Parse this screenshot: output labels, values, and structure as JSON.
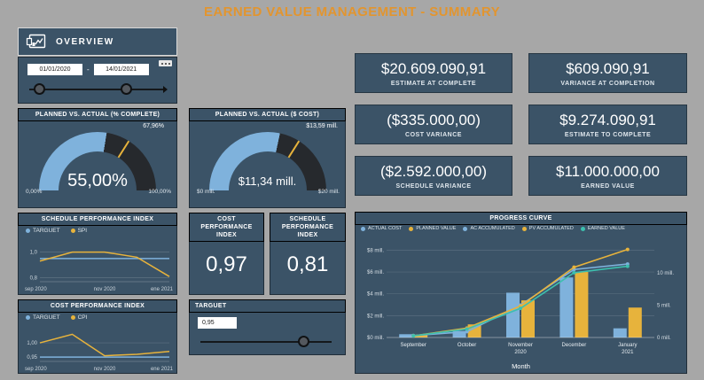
{
  "title": "EARNED VALUE MANAGEMENT - SUMMARY",
  "colors": {
    "background": "#a7a7a7",
    "panel": "#3b5367",
    "accent_blue": "#7fb2dc",
    "accent_yellow": "#e7b33c",
    "accent_teal": "#3dbfae",
    "title_orange": "#e2952f",
    "gauge_track": "#26292d"
  },
  "overview": {
    "label": "OVERVIEW"
  },
  "date_slicer": {
    "start_date": "01/01/2020",
    "end_date": "14/01/2021",
    "separator": "-"
  },
  "gauge_percent": {
    "title": "PLANNED VS. ACTUAL (% COMPLETE)",
    "value_label": "55,00%",
    "value_pct": 55.0,
    "marker_label": "67,96%",
    "marker_pct": 67.96,
    "min_label": "0,00%",
    "max_label": "100,00%",
    "fill": "#7fb2dc"
  },
  "gauge_cost": {
    "title": "PLANNED VS. ACTUAL ($ COST)",
    "value_label": "$11,34 mill.",
    "value_pct": 56.7,
    "marker_label": "$13,59 mill.",
    "marker_pct": 67.95,
    "min_label": "$0 mill.",
    "max_label": "$20 mill.",
    "fill": "#7fb2dc"
  },
  "kpi_cards": [
    {
      "value": "$20.609.090,91",
      "label": "ESTIMATE AT COMPLETE"
    },
    {
      "value": "$609.090,91",
      "label": "VARIANCE AT COMPLETION"
    },
    {
      "value": "($335.000,00)",
      "label": "COST VARIANCE"
    },
    {
      "value": "$9.274.090,91",
      "label": "ESTIMATE TO COMPLETE"
    },
    {
      "value": "($2.592.000,00)",
      "label": "SCHEDULE VARIANCE"
    },
    {
      "value": "$11.000.000,00",
      "label": "EARNED VALUE"
    }
  ],
  "kpi_cpi": {
    "title": "COST PERFORMANCE INDEX",
    "value": "0,97"
  },
  "kpi_spi": {
    "title": "SCHEDULE PERFORMANCE INDEX",
    "value": "0,81"
  },
  "targuet": {
    "title": "TARGUET",
    "value": "0,95"
  },
  "chart_data": [
    {
      "id": "spi-chart",
      "type": "line",
      "title": "SCHEDULE PERFORMANCE INDEX",
      "x": [
        "sep 2020",
        "oct 2020",
        "nov 2020",
        "dic 2020",
        "ene 2021"
      ],
      "x_tick_labels": [
        "sep 2020",
        "nov 2020",
        "ene 2021"
      ],
      "ylim": [
        0.77,
        1.08
      ],
      "y_ticks": [
        {
          "v": 1.0,
          "label": "1,0"
        },
        {
          "v": 0.8,
          "label": "0,8"
        }
      ],
      "series": [
        {
          "name": "TARGUET",
          "color": "#7fb2dc",
          "values": [
            0.95,
            0.95,
            0.95,
            0.95,
            0.95
          ]
        },
        {
          "name": "SPI",
          "color": "#e7b33c",
          "values": [
            0.93,
            1.0,
            1.0,
            0.96,
            0.81
          ]
        }
      ]
    },
    {
      "id": "cpi-chart",
      "type": "line",
      "title": "COST PERFORMANCE INDEX",
      "x": [
        "sep 2020",
        "oct 2020",
        "nov 2020",
        "dic 2020",
        "ene 2021"
      ],
      "x_tick_labels": [
        "sep 2020",
        "nov 2020",
        "ene 2021"
      ],
      "ylim": [
        0.935,
        1.05
      ],
      "y_ticks": [
        {
          "v": 1.0,
          "label": "1,00"
        },
        {
          "v": 0.95,
          "label": "0,95"
        }
      ],
      "series": [
        {
          "name": "TARGUET",
          "color": "#7fb2dc",
          "values": [
            0.95,
            0.95,
            0.95,
            0.95,
            0.95
          ]
        },
        {
          "name": "CPI",
          "color": "#e7b33c",
          "values": [
            1.0,
            1.03,
            0.955,
            0.96,
            0.97
          ]
        }
      ]
    },
    {
      "id": "progress-curve",
      "type": "combo",
      "title": "PROGRESS CURVE",
      "xlabel": "Month",
      "x": [
        "September",
        "October",
        "November|2020",
        "December",
        "January|2021"
      ],
      "left_ylim": [
        0,
        8.6
      ],
      "left_ticks": [
        {
          "v": 0,
          "label": "$0 mill."
        },
        {
          "v": 2,
          "label": "$2 mill."
        },
        {
          "v": 4,
          "label": "$4 mill."
        },
        {
          "v": 6,
          "label": "$6 mill."
        },
        {
          "v": 8,
          "label": "$8 mill."
        }
      ],
      "right_ylim": [
        0,
        14.5
      ],
      "right_ticks": [
        {
          "v": 0,
          "label": "0 mill."
        },
        {
          "v": 5,
          "label": "5 mill."
        },
        {
          "v": 10,
          "label": "10 mill."
        }
      ],
      "bars": [
        {
          "name": "ACTUAL COST",
          "color": "#7fb2dc",
          "values": [
            0.3,
            0.6,
            4.1,
            5.5,
            0.84
          ]
        },
        {
          "name": "PLANNED VALUE",
          "color": "#e7b33c",
          "values": [
            0.25,
            1.2,
            3.4,
            6.0,
            2.74
          ]
        }
      ],
      "lines": [
        {
          "name": "AC ACCUMULATED",
          "color": "#7fb2dc",
          "values": [
            0.3,
            0.9,
            5.0,
            10.5,
            11.34
          ]
        },
        {
          "name": "PV ACCUMULATED",
          "color": "#e7b33c",
          "values": [
            0.25,
            1.45,
            4.85,
            10.85,
            13.59
          ]
        },
        {
          "name": "EARNED VALUE",
          "color": "#3dbfae",
          "values": [
            0.25,
            1.3,
            4.5,
            10.0,
            11.0
          ]
        }
      ]
    }
  ]
}
